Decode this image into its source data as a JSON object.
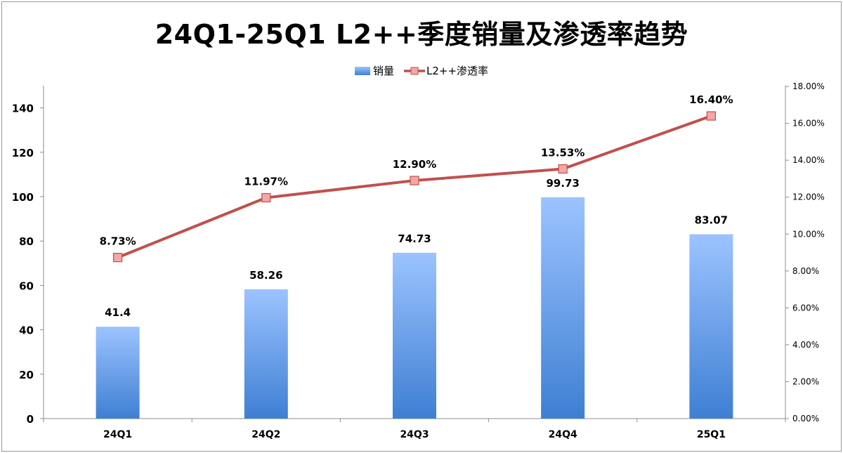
{
  "chart_data": {
    "type": "bar+line",
    "title": "24Q1-25Q1 L2++季度销量及渗透率趋势",
    "categories": [
      "24Q1",
      "24Q2",
      "24Q3",
      "24Q4",
      "25Q1"
    ],
    "series": [
      {
        "name": "销量",
        "type": "bar",
        "axis": "left",
        "values": [
          41.4,
          58.26,
          74.73,
          99.73,
          83.07
        ],
        "labels": [
          "41.4",
          "58.26",
          "74.73",
          "99.73",
          "83.07"
        ]
      },
      {
        "name": "L2++渗透率",
        "type": "line",
        "axis": "right",
        "values": [
          8.73,
          11.97,
          12.9,
          13.53,
          16.4
        ],
        "labels": [
          "8.73%",
          "11.97%",
          "12.90%",
          "13.53%",
          "16.40%"
        ]
      }
    ],
    "y_left": {
      "min": 0,
      "max": 150,
      "ticks": [
        "0",
        "20",
        "40",
        "60",
        "80",
        "100",
        "120",
        "140"
      ],
      "tick_values": [
        0,
        20,
        40,
        60,
        80,
        100,
        120,
        140
      ]
    },
    "y_right": {
      "min": 0,
      "max": 18,
      "ticks": [
        "0.00%",
        "2.00%",
        "4.00%",
        "6.00%",
        "8.00%",
        "10.00%",
        "12.00%",
        "14.00%",
        "16.00%",
        "18.00%"
      ],
      "tick_values": [
        0,
        2,
        4,
        6,
        8,
        10,
        12,
        14,
        16,
        18
      ]
    },
    "legend_position": "top-center",
    "grid": false
  },
  "colors": {
    "bar_top": "#9cc3ff",
    "bar_bottom": "#3e7fd3",
    "line": "#c0504d",
    "marker_fill": "#f4a7a4",
    "marker_stroke": "#c0504d",
    "axis": "#8c8c8c"
  }
}
